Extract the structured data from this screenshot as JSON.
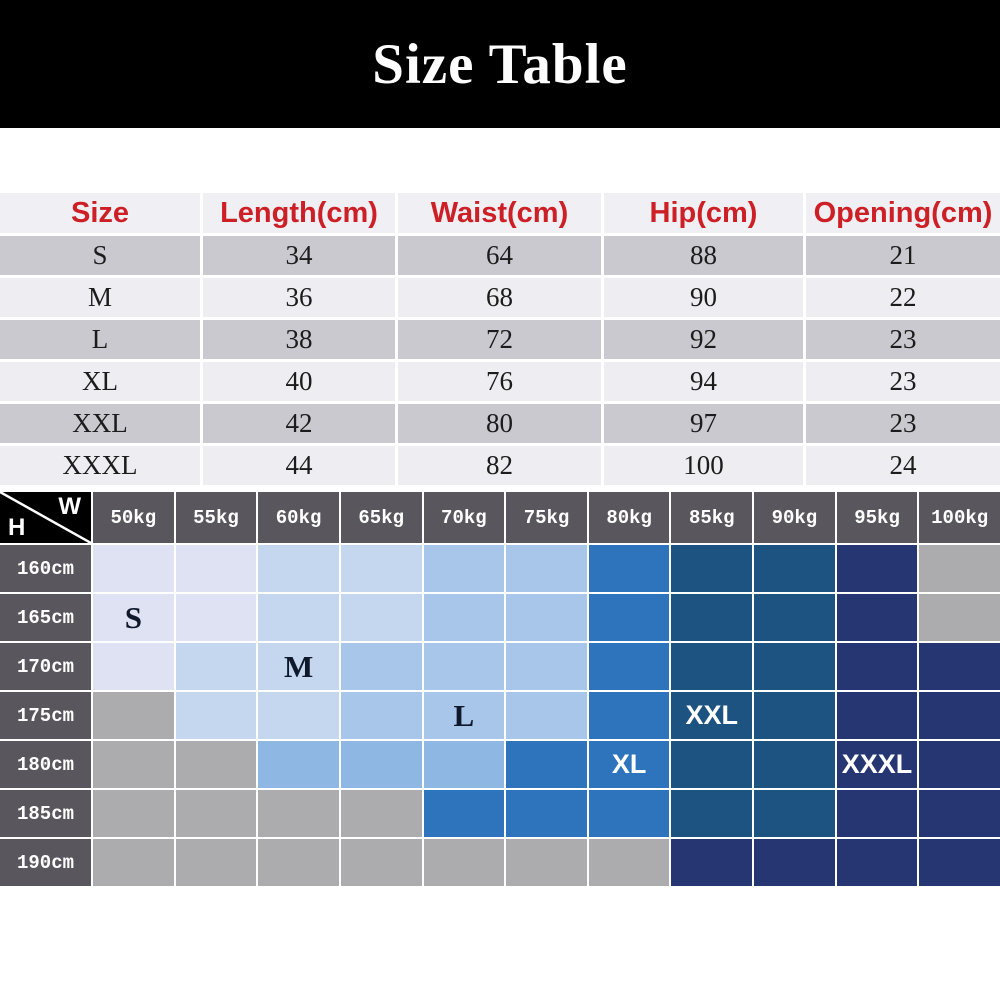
{
  "title": "Size Table",
  "size_table": {
    "headers": [
      "Size",
      "Length(cm)",
      "Waist(cm)",
      "Hip(cm)",
      "Opening(cm)"
    ],
    "rows": [
      [
        "S",
        "34",
        "64",
        "88",
        "21"
      ],
      [
        "M",
        "36",
        "68",
        "90",
        "22"
      ],
      [
        "L",
        "38",
        "72",
        "92",
        "23"
      ],
      [
        "XL",
        "40",
        "76",
        "94",
        "23"
      ],
      [
        "XXL",
        "42",
        "80",
        "97",
        "23"
      ],
      [
        "XXXL",
        "44",
        "82",
        "100",
        "24"
      ]
    ]
  },
  "matrix": {
    "corner": {
      "weight_label": "W",
      "height_label": "H"
    },
    "weights": [
      "50kg",
      "55kg",
      "60kg",
      "65kg",
      "70kg",
      "75kg",
      "80kg",
      "85kg",
      "90kg",
      "95kg",
      "100kg"
    ],
    "heights": [
      "160cm",
      "165cm",
      "170cm",
      "175cm",
      "180cm",
      "185cm",
      "190cm"
    ],
    "palette": {
      "l1": "#dfe2f3",
      "l2": "#c4d7ef",
      "l3": "#a7c6ea",
      "l4": "#8fb7e4",
      "m": "#2e74bd",
      "d": "#1d5380",
      "n": "#263673",
      "g": "#acabad"
    },
    "cells": [
      [
        "l1",
        "l1",
        "l2",
        "l2",
        "l3",
        "l3",
        "m",
        "d",
        "d",
        "n",
        "g"
      ],
      [
        "l1",
        "l1",
        "l2",
        "l2",
        "l3",
        "l3",
        "m",
        "d",
        "d",
        "n",
        "g"
      ],
      [
        "l1",
        "l2",
        "l2",
        "l3",
        "l3",
        "l3",
        "m",
        "d",
        "d",
        "n",
        "n"
      ],
      [
        "g",
        "l2",
        "l2",
        "l3",
        "l3",
        "l3",
        "m",
        "d",
        "d",
        "n",
        "n"
      ],
      [
        "g",
        "g",
        "l4",
        "l4",
        "l4",
        "m",
        "m",
        "d",
        "d",
        "n",
        "n"
      ],
      [
        "g",
        "g",
        "g",
        "g",
        "m",
        "m",
        "m",
        "d",
        "d",
        "n",
        "n"
      ],
      [
        "g",
        "g",
        "g",
        "g",
        "g",
        "g",
        "g",
        "n",
        "n",
        "n",
        "n"
      ]
    ],
    "labels": [
      {
        "row": 1,
        "col": 0,
        "text": "S",
        "tone": "dark"
      },
      {
        "row": 2,
        "col": 2,
        "text": "M",
        "tone": "dark"
      },
      {
        "row": 3,
        "col": 4,
        "text": "L",
        "tone": "dark"
      },
      {
        "row": 4,
        "col": 6,
        "text": "XL",
        "tone": "light"
      },
      {
        "row": 3,
        "col": 7,
        "text": "XXL",
        "tone": "light"
      },
      {
        "row": 4,
        "col": 9,
        "text": "XXXL",
        "tone": "light"
      }
    ]
  },
  "colors": {
    "title_bar_bg": "#000000",
    "title_text": "#fdfdfd",
    "table_header_text": "#cd2026",
    "table_header_bg": "#f0eff4",
    "table_row_gray": "#cac9cf",
    "table_row_light": "#eeedf2",
    "table_cell_text": "#1c1c1c",
    "matrix_header_bg": "#59575d",
    "matrix_header_text": "#ffffff",
    "grid_border": "#ffffff"
  },
  "chart_data": [
    {
      "type": "table",
      "title": "Size Table",
      "columns": [
        "Size",
        "Length(cm)",
        "Waist(cm)",
        "Hip(cm)",
        "Opening(cm)"
      ],
      "rows": [
        [
          "S",
          34,
          64,
          88,
          21
        ],
        [
          "M",
          36,
          68,
          90,
          22
        ],
        [
          "L",
          38,
          72,
          92,
          23
        ],
        [
          "XL",
          40,
          76,
          94,
          23
        ],
        [
          "XXL",
          42,
          80,
          97,
          23
        ],
        [
          "XXXL",
          44,
          82,
          100,
          24
        ]
      ]
    },
    {
      "type": "heatmap",
      "title": "Recommended size by height (H) and weight (W)",
      "x_labels": [
        "50kg",
        "55kg",
        "60kg",
        "65kg",
        "70kg",
        "75kg",
        "80kg",
        "85kg",
        "90kg",
        "95kg",
        "100kg"
      ],
      "y_labels": [
        "160cm",
        "165cm",
        "170cm",
        "175cm",
        "180cm",
        "185cm",
        "190cm"
      ],
      "annotations": [
        {
          "y": "165cm",
          "x": "50kg",
          "label": "S"
        },
        {
          "y": "170cm",
          "x": "60kg",
          "label": "M"
        },
        {
          "y": "175cm",
          "x": "70kg",
          "label": "L"
        },
        {
          "y": "180cm",
          "x": "80kg",
          "label": "XL"
        },
        {
          "y": "175cm",
          "x": "85kg",
          "label": "XXL"
        },
        {
          "y": "180cm",
          "x": "95kg",
          "label": "XXXL"
        }
      ],
      "cell_shades": [
        [
          "l1",
          "l1",
          "l2",
          "l2",
          "l3",
          "l3",
          "m",
          "d",
          "d",
          "n",
          "g"
        ],
        [
          "l1",
          "l1",
          "l2",
          "l2",
          "l3",
          "l3",
          "m",
          "d",
          "d",
          "n",
          "g"
        ],
        [
          "l1",
          "l2",
          "l2",
          "l3",
          "l3",
          "l3",
          "m",
          "d",
          "d",
          "n",
          "n"
        ],
        [
          "g",
          "l2",
          "l2",
          "l3",
          "l3",
          "l3",
          "m",
          "d",
          "d",
          "n",
          "n"
        ],
        [
          "g",
          "g",
          "l4",
          "l4",
          "l4",
          "m",
          "m",
          "d",
          "d",
          "n",
          "n"
        ],
        [
          "g",
          "g",
          "g",
          "g",
          "m",
          "m",
          "m",
          "d",
          "d",
          "n",
          "n"
        ],
        [
          "g",
          "g",
          "g",
          "g",
          "g",
          "g",
          "g",
          "n",
          "n",
          "n",
          "n"
        ]
      ],
      "legend_position": "none",
      "grid": true
    }
  ]
}
